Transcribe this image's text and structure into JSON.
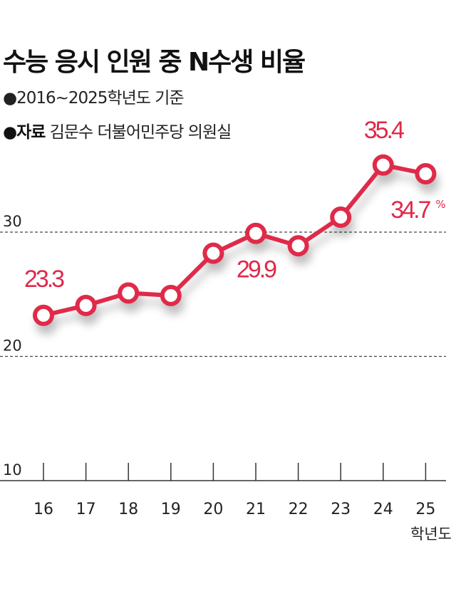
{
  "title": "수능 응시 인원 중 N수생 비율",
  "subtitle": "●2016~2025학년도 기준",
  "source": {
    "label": "●자료",
    "text": "김문수 더불어민주당 의원실"
  },
  "colors": {
    "line": "#e0294a",
    "text": "#111111",
    "grid": "#444444"
  },
  "chart_data": {
    "type": "line",
    "title": "수능 응시 인원 중 N수생 비율",
    "categories": [
      "16",
      "17",
      "18",
      "19",
      "20",
      "21",
      "22",
      "23",
      "24",
      "25"
    ],
    "xlabel": "학년도",
    "ylabel": "",
    "unit": "%",
    "ylim": [
      10,
      38
    ],
    "yticks": [
      "10",
      "20",
      "30"
    ],
    "grid": "dashed horizontal at 20 and 30",
    "series": [
      {
        "values": [
          23.3,
          24.1,
          25.1,
          24.9,
          28.3,
          29.9,
          28.9,
          31.2,
          35.4,
          34.7
        ]
      }
    ],
    "data_labels": [
      {
        "index": 0,
        "text": "23.3"
      },
      {
        "index": 5,
        "text": "29.9"
      },
      {
        "index": 8,
        "text": "35.4"
      },
      {
        "index": 9,
        "text": "34.7",
        "suffix": "%"
      }
    ]
  }
}
